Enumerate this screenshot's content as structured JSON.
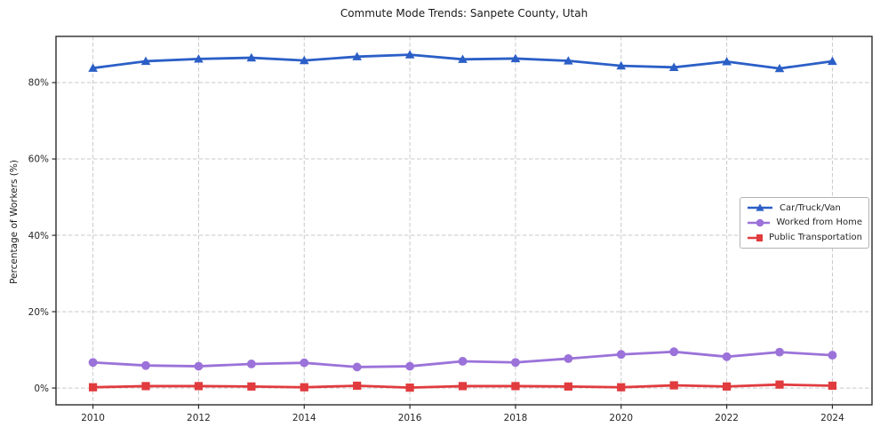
{
  "chart_data": {
    "type": "line",
    "title": "Commute Mode Trends: Sanpete County, Utah",
    "xlabel": "",
    "ylabel": "Percentage of Workers (%)",
    "x": [
      2010,
      2011,
      2012,
      2013,
      2014,
      2015,
      2016,
      2017,
      2018,
      2019,
      2020,
      2021,
      2022,
      2023,
      2024
    ],
    "series": [
      {
        "name": "Car/Truck/Van",
        "color": "#2b5fc7",
        "marker": "triangle",
        "values": [
          83.8,
          85.6,
          86.2,
          86.5,
          85.8,
          86.8,
          87.3,
          86.1,
          86.3,
          85.7,
          84.4,
          84.0,
          85.5,
          83.7,
          85.6
        ]
      },
      {
        "name": "Worked from Home",
        "color": "#9b72d9",
        "marker": "circle",
        "values": [
          6.7,
          5.9,
          5.7,
          6.3,
          6.6,
          5.5,
          5.7,
          7.0,
          6.7,
          7.7,
          8.8,
          9.5,
          8.2,
          9.4,
          8.6
        ]
      },
      {
        "name": "Public Transportation",
        "color": "#e13b3e",
        "marker": "square",
        "values": [
          0.2,
          0.5,
          0.5,
          0.4,
          0.2,
          0.6,
          0.1,
          0.5,
          0.5,
          0.4,
          0.2,
          0.7,
          0.4,
          0.9,
          0.6
        ]
      }
    ],
    "xticks": {
      "values": [
        2010,
        2012,
        2014,
        2016,
        2018,
        2020,
        2022,
        2024
      ],
      "labels": [
        "2010",
        "2012",
        "2014",
        "2016",
        "2018",
        "2020",
        "2022",
        "2024"
      ]
    },
    "yticks": {
      "values": [
        0,
        20,
        40,
        60,
        80
      ],
      "labels": [
        "0%",
        "20%",
        "40%",
        "60%",
        "80%"
      ]
    },
    "xlim": [
      2009.3,
      2024.75
    ],
    "ylim": [
      -4.4,
      92.1
    ],
    "grid": true,
    "grid_style": "dashed",
    "legend": {
      "position": "center-right"
    }
  },
  "colors": {
    "grid": "#c9c9c9",
    "spine": "#2b2b2b",
    "text": "#262626",
    "legend_border": "#b3b3b3"
  }
}
